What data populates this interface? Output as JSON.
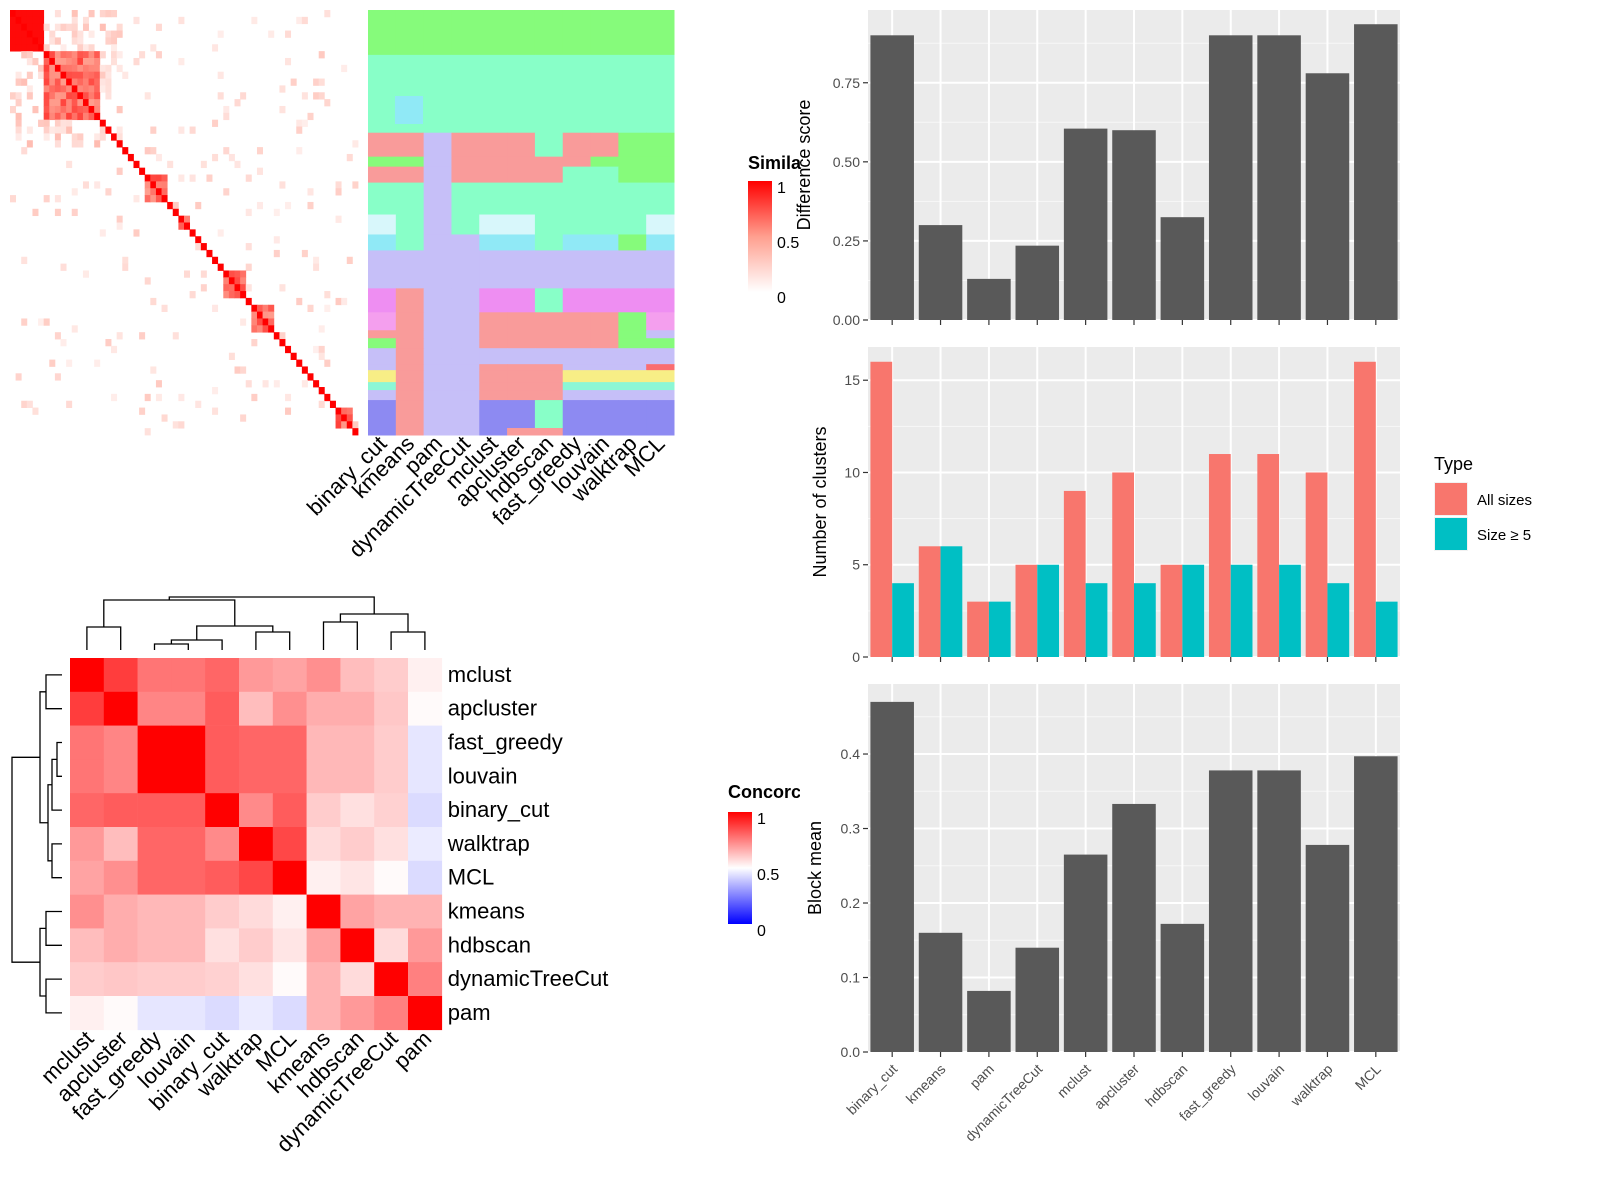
{
  "methods": [
    "binary_cut",
    "kmeans",
    "pam",
    "dynamicTreeCut",
    "mclust",
    "apcluster",
    "hdbscan",
    "fast_greedy",
    "louvain",
    "walktrap",
    "MCL"
  ],
  "similarity_panel": {
    "legend_title": "Simila",
    "legend_ticks": [
      "1",
      "0.5",
      "0"
    ],
    "column_labels": [
      "binary_cut",
      "kmeans",
      "pam",
      "dynamicTreeCut",
      "mclust",
      "apcluster",
      "hdbscan",
      "fast_greedy",
      "louvain",
      "walktrap",
      "MCL"
    ]
  },
  "concordance_panel": {
    "legend_title": "Concorc",
    "legend_ticks": [
      "1",
      "0.5",
      "0"
    ],
    "order": [
      "mclust",
      "apcluster",
      "fast_greedy",
      "louvain",
      "binary_cut",
      "walktrap",
      "MCL",
      "kmeans",
      "hdbscan",
      "dynamicTreeCut",
      "pam"
    ]
  },
  "chart_data": [
    {
      "type": "heatmap",
      "name": "concordance",
      "rows": [
        "mclust",
        "apcluster",
        "fast_greedy",
        "louvain",
        "binary_cut",
        "walktrap",
        "MCL",
        "kmeans",
        "hdbscan",
        "dynamicTreeCut",
        "pam"
      ],
      "cols": [
        "mclust",
        "apcluster",
        "fast_greedy",
        "louvain",
        "binary_cut",
        "walktrap",
        "MCL",
        "kmeans",
        "hdbscan",
        "dynamicTreeCut",
        "pam"
      ],
      "values": [
        [
          1.0,
          0.88,
          0.77,
          0.77,
          0.8,
          0.7,
          0.68,
          0.72,
          0.63,
          0.6,
          0.53
        ],
        [
          0.88,
          1.0,
          0.74,
          0.74,
          0.82,
          0.63,
          0.72,
          0.66,
          0.66,
          0.61,
          0.51
        ],
        [
          0.77,
          0.74,
          1.0,
          1.0,
          0.82,
          0.8,
          0.8,
          0.64,
          0.64,
          0.6,
          0.45
        ],
        [
          0.77,
          0.74,
          1.0,
          1.0,
          0.82,
          0.8,
          0.8,
          0.64,
          0.64,
          0.6,
          0.45
        ],
        [
          0.8,
          0.82,
          0.82,
          0.82,
          1.0,
          0.73,
          0.82,
          0.6,
          0.56,
          0.59,
          0.43
        ],
        [
          0.7,
          0.63,
          0.8,
          0.8,
          0.73,
          1.0,
          0.86,
          0.57,
          0.6,
          0.56,
          0.46
        ],
        [
          0.68,
          0.72,
          0.8,
          0.8,
          0.82,
          0.86,
          1.0,
          0.53,
          0.55,
          0.51,
          0.43
        ],
        [
          0.72,
          0.66,
          0.64,
          0.64,
          0.6,
          0.57,
          0.53,
          1.0,
          0.68,
          0.65,
          0.65
        ],
        [
          0.63,
          0.66,
          0.64,
          0.64,
          0.56,
          0.6,
          0.55,
          0.68,
          1.0,
          0.57,
          0.7
        ],
        [
          0.6,
          0.61,
          0.6,
          0.6,
          0.59,
          0.56,
          0.51,
          0.65,
          0.57,
          1.0,
          0.75
        ],
        [
          0.53,
          0.51,
          0.45,
          0.45,
          0.43,
          0.46,
          0.43,
          0.65,
          0.7,
          0.75,
          1.0
        ]
      ],
      "legend": "Concorc",
      "range": [
        0,
        1
      ]
    },
    {
      "type": "bar",
      "name": "difference_score",
      "categories": [
        "binary_cut",
        "kmeans",
        "pam",
        "dynamicTreeCut",
        "mclust",
        "apcluster",
        "hdbscan",
        "fast_greedy",
        "louvain",
        "walktrap",
        "MCL"
      ],
      "values": [
        0.9,
        0.3,
        0.13,
        0.235,
        0.605,
        0.6,
        0.325,
        0.9,
        0.9,
        0.78,
        0.935
      ],
      "ylabel": "Difference score",
      "ylim": [
        0,
        0.98
      ],
      "yticks": [
        "0.00",
        "0.25",
        "0.50",
        "0.75"
      ],
      "color": "#595959"
    },
    {
      "type": "bar",
      "name": "number_of_clusters",
      "categories": [
        "binary_cut",
        "kmeans",
        "pam",
        "dynamicTreeCut",
        "mclust",
        "apcluster",
        "hdbscan",
        "fast_greedy",
        "louvain",
        "walktrap",
        "MCL"
      ],
      "series": [
        {
          "name": "All sizes",
          "values": [
            16,
            6,
            3,
            5,
            9,
            10,
            5,
            11,
            11,
            10,
            16
          ],
          "color": "#F8766D"
        },
        {
          "name": "Size ≥ 5",
          "values": [
            4,
            6,
            3,
            5,
            4,
            4,
            5,
            5,
            5,
            4,
            3
          ],
          "color": "#00BFC4"
        }
      ],
      "ylabel": "Number of clusters",
      "ylim": [
        0,
        16.8
      ],
      "yticks": [
        "0",
        "5",
        "10",
        "15"
      ],
      "legend_title": "Type"
    },
    {
      "type": "bar",
      "name": "block_mean",
      "categories": [
        "binary_cut",
        "kmeans",
        "pam",
        "dynamicTreeCut",
        "mclust",
        "apcluster",
        "hdbscan",
        "fast_greedy",
        "louvain",
        "walktrap",
        "MCL"
      ],
      "values": [
        0.47,
        0.16,
        0.082,
        0.14,
        0.265,
        0.333,
        0.172,
        0.378,
        0.378,
        0.278,
        0.397
      ],
      "ylabel": "Block mean",
      "ylim": [
        0,
        0.494
      ],
      "yticks": [
        "0.0",
        "0.1",
        "0.2",
        "0.3",
        "0.4"
      ],
      "color": "#595959"
    }
  ]
}
